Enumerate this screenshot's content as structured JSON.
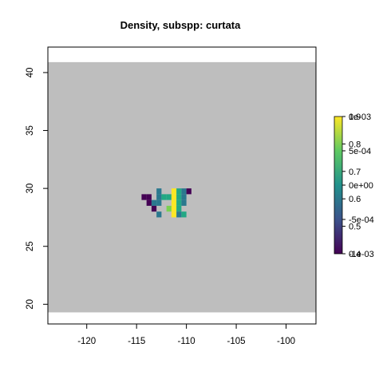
{
  "chart_data": {
    "type": "heatmap",
    "title": "Density, subspp: curtata",
    "xlabel": "",
    "ylabel": "",
    "x_ticks": [
      -120,
      -115,
      -110,
      -105,
      -100
    ],
    "y_ticks": [
      20,
      25,
      30,
      35,
      40
    ],
    "xlim": [
      -123.9,
      -97.0
    ],
    "ylim": [
      18.3,
      42.2
    ],
    "map_extent": {
      "x": [
        -123.9,
        -97.0
      ],
      "y": [
        19.3,
        40.9
      ]
    },
    "background_color": "#bebebe",
    "cell_size": 0.5,
    "cells": [
      {
        "x": -114.25,
        "y": 29.25,
        "color": "#440154"
      },
      {
        "x": -113.75,
        "y": 29.25,
        "color": "#440154"
      },
      {
        "x": -112.75,
        "y": 29.75,
        "color": "#2a788e"
      },
      {
        "x": -111.25,
        "y": 29.75,
        "color": "#fde725"
      },
      {
        "x": -110.75,
        "y": 29.75,
        "color": "#22a884"
      },
      {
        "x": -110.25,
        "y": 29.75,
        "color": "#2a788e"
      },
      {
        "x": -109.75,
        "y": 29.75,
        "color": "#440154"
      },
      {
        "x": -113.75,
        "y": 28.75,
        "color": "#440154"
      },
      {
        "x": -112.75,
        "y": 29.25,
        "color": "#2a788e"
      },
      {
        "x": -112.25,
        "y": 29.25,
        "color": "#22a884"
      },
      {
        "x": -111.75,
        "y": 29.25,
        "color": "#22a884"
      },
      {
        "x": -111.25,
        "y": 29.25,
        "color": "#fde725"
      },
      {
        "x": -110.75,
        "y": 29.25,
        "color": "#22a884"
      },
      {
        "x": -110.25,
        "y": 29.25,
        "color": "#2a788e"
      },
      {
        "x": -113.25,
        "y": 28.75,
        "color": "#2a788e"
      },
      {
        "x": -112.75,
        "y": 28.75,
        "color": "#2a788e"
      },
      {
        "x": -111.25,
        "y": 28.75,
        "color": "#fde725"
      },
      {
        "x": -110.75,
        "y": 28.75,
        "color": "#22a884"
      },
      {
        "x": -110.25,
        "y": 28.75,
        "color": "#2a788e"
      },
      {
        "x": -113.25,
        "y": 28.25,
        "color": "#440154"
      },
      {
        "x": -111.75,
        "y": 28.25,
        "color": "#7ad151"
      },
      {
        "x": -111.25,
        "y": 28.25,
        "color": "#fde725"
      },
      {
        "x": -110.75,
        "y": 28.25,
        "color": "#22a884"
      },
      {
        "x": -112.75,
        "y": 27.75,
        "color": "#2a788e"
      },
      {
        "x": -111.25,
        "y": 27.75,
        "color": "#fde725"
      },
      {
        "x": -110.75,
        "y": 27.75,
        "color": "#2a788e"
      },
      {
        "x": -110.25,
        "y": 27.75,
        "color": "#22a884"
      }
    ],
    "colorbar": {
      "colors": [
        "#440154",
        "#3b528b",
        "#21918c",
        "#5ec962",
        "#fde725"
      ],
      "left_labels": [
        "0.4",
        "0.5",
        "0.6",
        "0.7",
        "0.8",
        "0.9"
      ],
      "right_labels": [
        "-1e-03",
        "-5e-04",
        "0e+00",
        "5e-04",
        "1e-03"
      ]
    }
  }
}
